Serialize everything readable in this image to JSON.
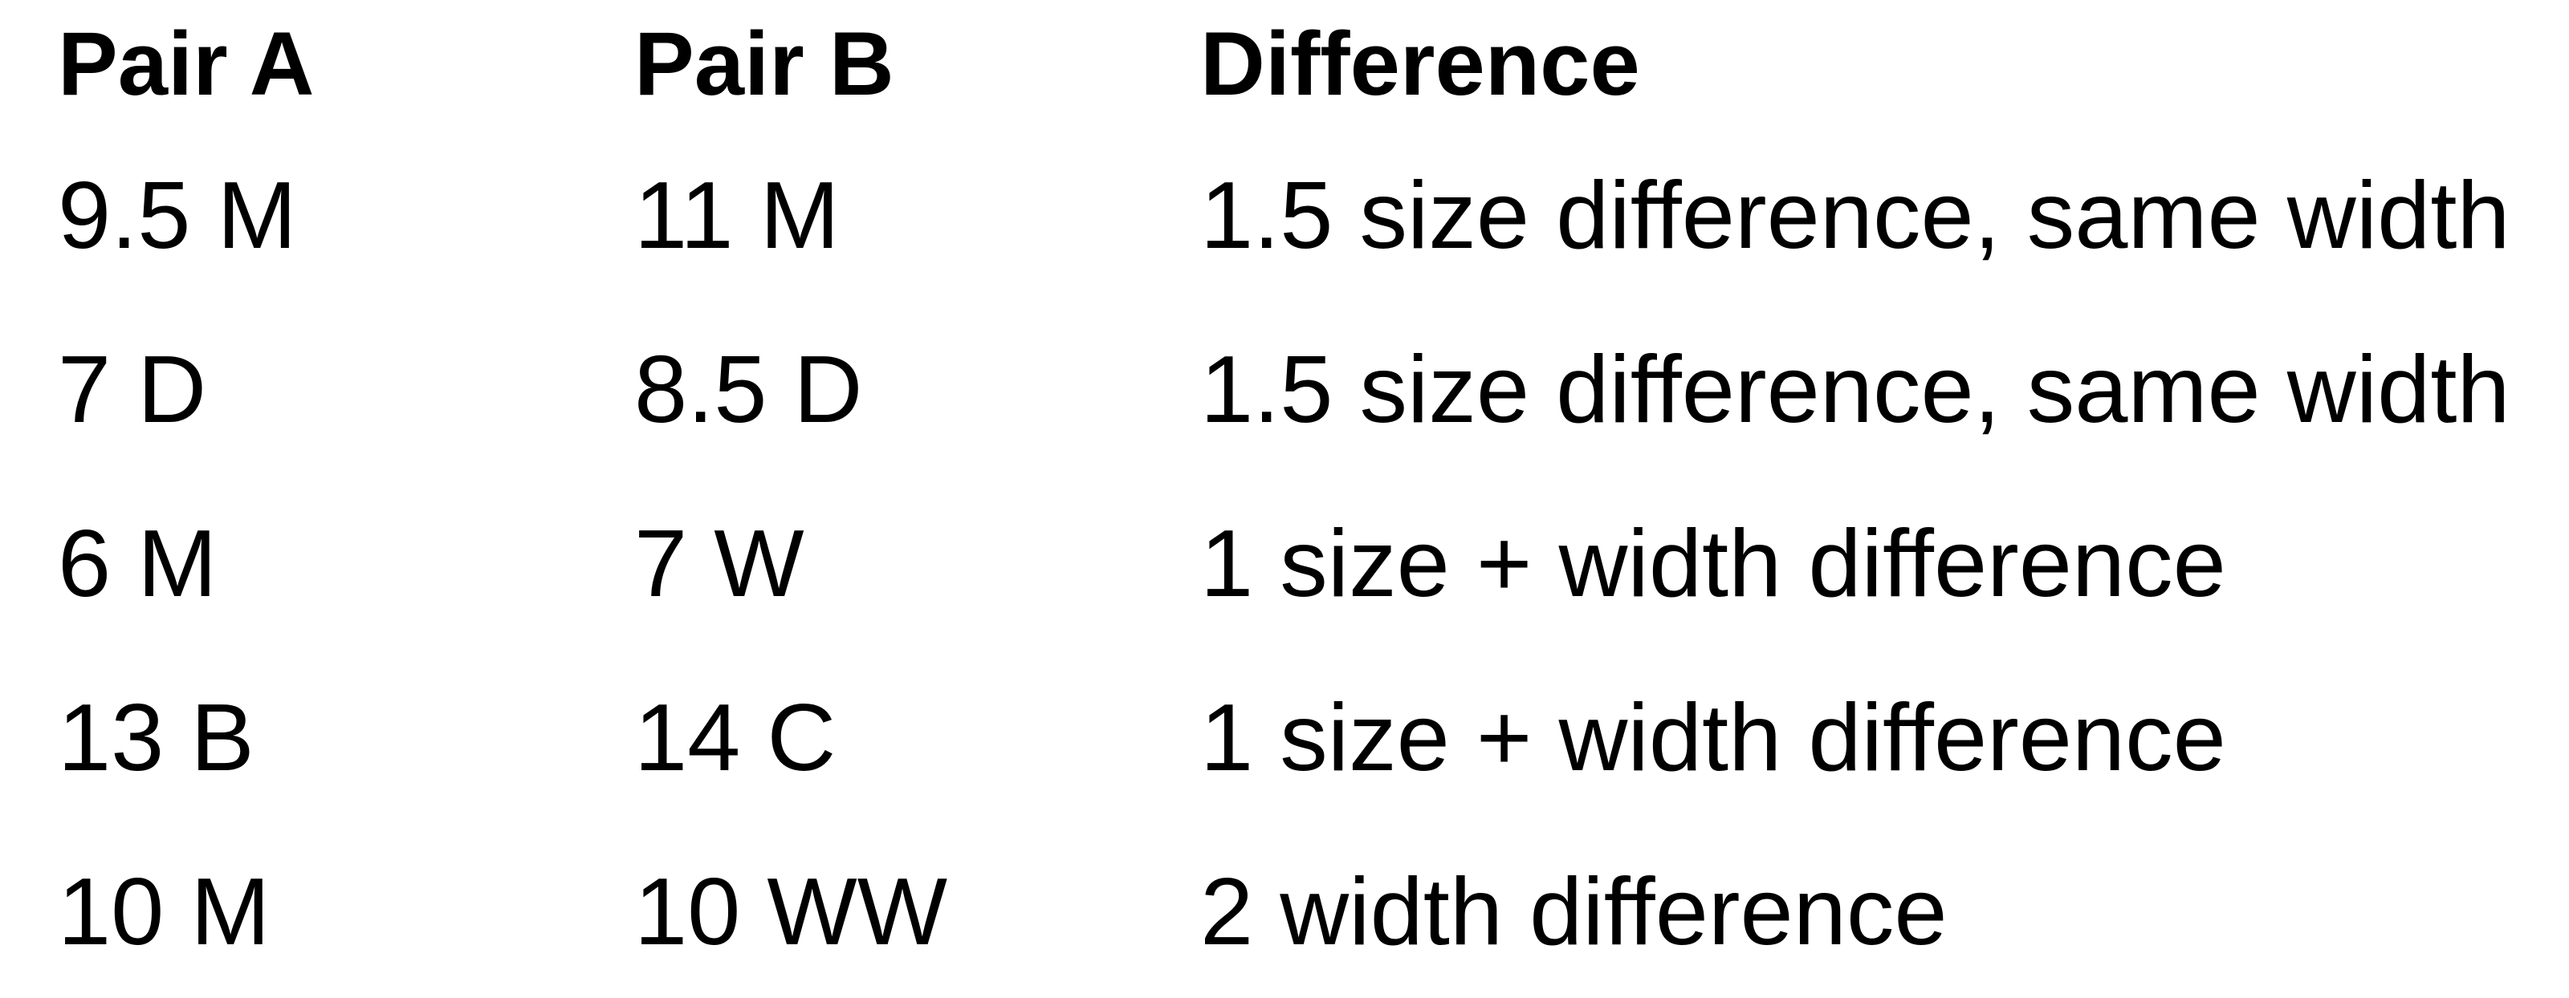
{
  "page": {
    "background_color": "#ffffff",
    "text_color": "#000000"
  },
  "table": {
    "columns": [
      {
        "label": "Pair A"
      },
      {
        "label": "Pair B"
      },
      {
        "label": "Difference"
      }
    ],
    "rows": [
      {
        "pair_a": "9.5 M",
        "pair_b": "11 M",
        "difference": "1.5 size difference, same width"
      },
      {
        "pair_a": "7 D",
        "pair_b": "8.5 D",
        "difference": "1.5 size difference, same width"
      },
      {
        "pair_a": "6 M",
        "pair_b": "7 W",
        "difference": "1 size + width difference"
      },
      {
        "pair_a": "13 B",
        "pair_b": "14 C",
        "difference": "1 size + width difference"
      },
      {
        "pair_a": "10 M",
        "pair_b": "10 WW",
        "difference": "2 width difference"
      }
    ]
  }
}
